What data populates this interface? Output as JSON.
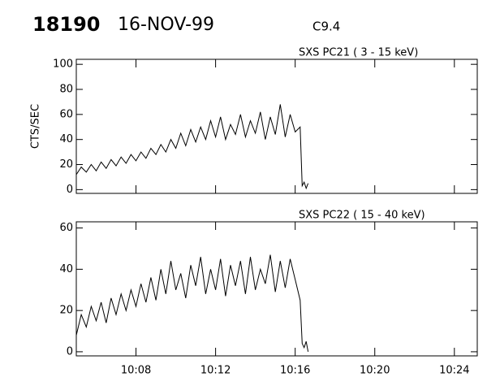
{
  "chart_data": [
    {
      "type": "line",
      "title": "18190",
      "subtitle": "16-NOV-99",
      "annotation": "C9.4",
      "panel_label": "SXS PC21  (  3 - 15 keV)",
      "y_label": "CTS/SEC",
      "color": "#000000",
      "xlim": [
        5,
        25.15
      ],
      "xticks": [
        8,
        12,
        16,
        20,
        24
      ],
      "ylim": [
        -3,
        104
      ],
      "yticks": [
        0,
        20,
        40,
        60,
        80,
        100
      ],
      "x": [
        5.0,
        5.25,
        5.5,
        5.75,
        6.0,
        6.25,
        6.5,
        6.75,
        7.0,
        7.25,
        7.5,
        7.75,
        8.0,
        8.25,
        8.5,
        8.75,
        9.0,
        9.25,
        9.5,
        9.75,
        10.0,
        10.25,
        10.5,
        10.75,
        11.0,
        11.25,
        11.5,
        11.75,
        12.0,
        12.25,
        12.5,
        12.75,
        13.0,
        13.25,
        13.5,
        13.75,
        14.0,
        14.25,
        14.5,
        14.75,
        15.0,
        15.25,
        15.5,
        15.75,
        16.0,
        16.25,
        16.35,
        16.45,
        16.55,
        16.65
      ],
      "values": [
        12,
        18,
        14,
        20,
        15,
        22,
        17,
        24,
        19,
        26,
        21,
        28,
        23,
        30,
        25,
        33,
        28,
        36,
        30,
        40,
        33,
        45,
        35,
        48,
        38,
        50,
        40,
        55,
        42,
        58,
        40,
        52,
        44,
        60,
        42,
        55,
        45,
        62,
        40,
        58,
        44,
        68,
        42,
        60,
        46,
        50,
        3,
        6,
        1,
        5
      ]
    },
    {
      "type": "line",
      "panel_label": "SXS PC22  ( 15 - 40 keV)",
      "color": "#000000",
      "xlim": [
        5,
        25.15
      ],
      "xticks": [
        {
          "value": 8,
          "label": "10:08"
        },
        {
          "value": 12,
          "label": "10:12"
        },
        {
          "value": 16,
          "label": "10:16"
        },
        {
          "value": 20,
          "label": "10:20"
        },
        {
          "value": 24,
          "label": "10:24"
        }
      ],
      "ylim": [
        -2,
        63
      ],
      "yticks": [
        0,
        20,
        40,
        60
      ],
      "x": [
        5.0,
        5.25,
        5.5,
        5.75,
        6.0,
        6.25,
        6.5,
        6.75,
        7.0,
        7.25,
        7.5,
        7.75,
        8.0,
        8.25,
        8.5,
        8.75,
        9.0,
        9.25,
        9.5,
        9.75,
        10.0,
        10.25,
        10.5,
        10.75,
        11.0,
        11.25,
        11.5,
        11.75,
        12.0,
        12.25,
        12.5,
        12.75,
        13.0,
        13.25,
        13.5,
        13.75,
        14.0,
        14.25,
        14.5,
        14.75,
        15.0,
        15.25,
        15.5,
        15.75,
        16.0,
        16.25,
        16.35,
        16.45,
        16.55,
        16.65
      ],
      "values": [
        8,
        18,
        12,
        22,
        15,
        24,
        14,
        26,
        18,
        28,
        20,
        30,
        22,
        33,
        24,
        36,
        25,
        40,
        28,
        44,
        30,
        38,
        26,
        42,
        32,
        46,
        28,
        40,
        30,
        45,
        27,
        42,
        32,
        44,
        28,
        46,
        30,
        40,
        33,
        47,
        29,
        44,
        31,
        45,
        35,
        25,
        4,
        2,
        5,
        0
      ]
    }
  ]
}
